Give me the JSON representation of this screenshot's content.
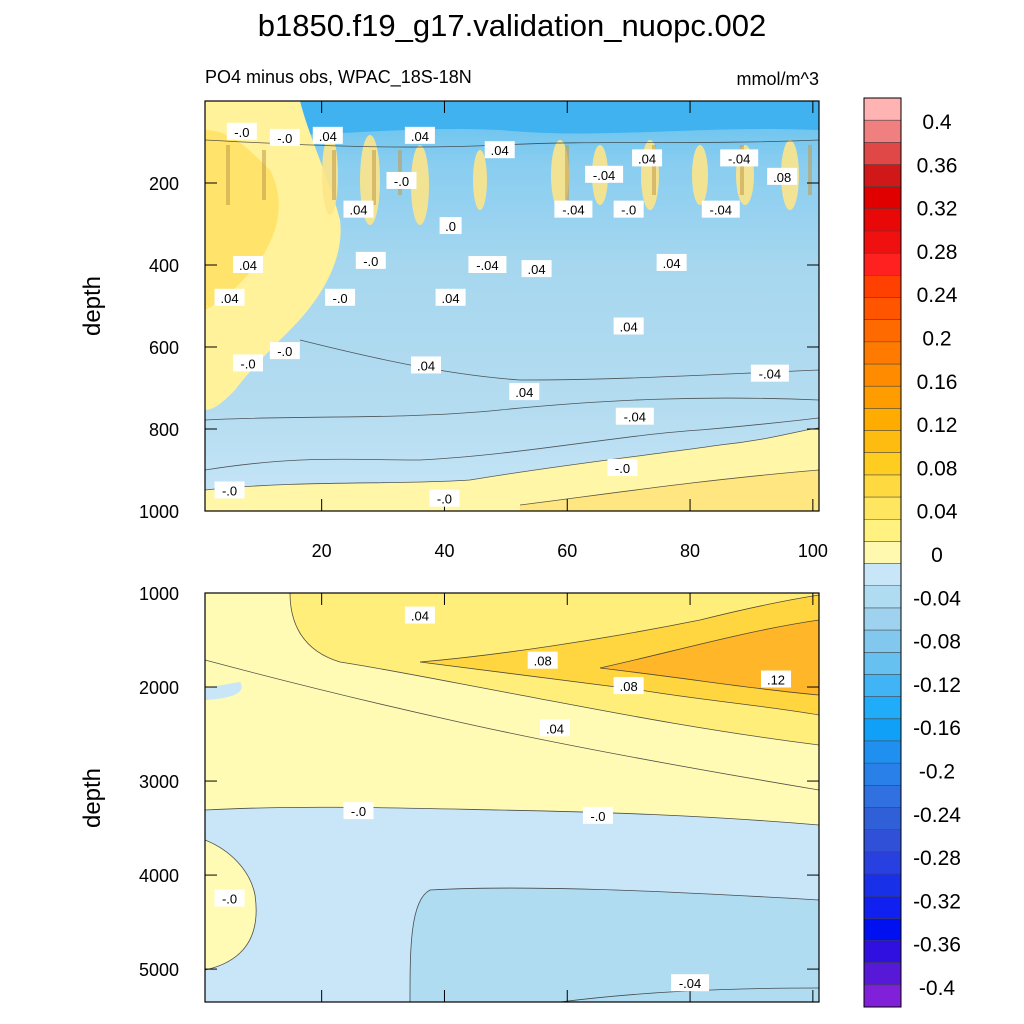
{
  "chart_data": {
    "type": "contour",
    "title": "b1850.f19_g17.validation_nuopc.002",
    "variable_label": "PO4 minus obs, WPAC_18S-18N",
    "units": "mmol/m^3",
    "colorbar": {
      "tick_labels": [
        "0.4",
        "0.36",
        "0.32",
        "0.28",
        "0.24",
        "0.2",
        "0.16",
        "0.12",
        "0.08",
        "0.04",
        "0",
        "-0.04",
        "-0.08",
        "-0.12",
        "-0.16",
        "-0.2",
        "-0.24",
        "-0.28",
        "-0.32",
        "-0.36",
        "-0.4"
      ],
      "colors": [
        "#ffb3b3",
        "#f08080",
        "#e04848",
        "#d01818",
        "#e00000",
        "#e80808",
        "#f01010",
        "#ff2020",
        "#ff4000",
        "#ff5500",
        "#ff6a00",
        "#ff7a00",
        "#ff8c00",
        "#ff9c00",
        "#ffac00",
        "#ffbc10",
        "#ffcc20",
        "#ffd940",
        "#ffe660",
        "#fff280",
        "#fff9b0",
        "#c8e6f8",
        "#b0dcf2",
        "#9ed2ee",
        "#82c8ee",
        "#66c0f0",
        "#40b4f4",
        "#20acf8",
        "#10a0f8",
        "#2090f0",
        "#2880e8",
        "#3070e0",
        "#3060d8",
        "#3050d8",
        "#2840e0",
        "#1830e8",
        "#1020f0",
        "#0010f0",
        "#3010e0",
        "#5818d8",
        "#8020d8"
      ]
    },
    "panels": [
      {
        "name": "upper",
        "x_ticks": [
          20,
          40,
          60,
          80,
          100
        ],
        "xlim": [
          1,
          101
        ],
        "y_ticks": [
          200,
          400,
          600,
          800,
          1000
        ],
        "ylim": [
          0,
          1000
        ],
        "ylabel": "depth",
        "contour_labels": [
          {
            "text": "-.0",
            "x": 7,
            "y": 75
          },
          {
            "text": "-.0",
            "x": 14,
            "y": 90
          },
          {
            "text": ".04",
            "x": 21,
            "y": 85
          },
          {
            "text": ".04",
            "x": 36,
            "y": 85
          },
          {
            "text": ".04",
            "x": 49,
            "y": 120
          },
          {
            "text": ".04",
            "x": 73,
            "y": 140
          },
          {
            "text": "-.04",
            "x": 88,
            "y": 140
          },
          {
            "text": "-.04",
            "x": 66,
            "y": 180
          },
          {
            "text": "-.0",
            "x": 33,
            "y": 195
          },
          {
            "text": ".08",
            "x": 95,
            "y": 185
          },
          {
            "text": ".04",
            "x": 26,
            "y": 265
          },
          {
            "text": "-.04",
            "x": 61,
            "y": 265
          },
          {
            "text": "-.0",
            "x": 70,
            "y": 265
          },
          {
            "text": "-.04",
            "x": 85,
            "y": 265
          },
          {
            "text": ".0",
            "x": 41,
            "y": 305
          },
          {
            "text": ".04",
            "x": 8,
            "y": 400
          },
          {
            "text": "-.0",
            "x": 28,
            "y": 390
          },
          {
            "text": "-.04",
            "x": 47,
            "y": 400
          },
          {
            "text": ".04",
            "x": 55,
            "y": 410
          },
          {
            "text": ".04",
            "x": 77,
            "y": 395
          },
          {
            "text": ".04",
            "x": 5,
            "y": 480
          },
          {
            "text": "-.0",
            "x": 23,
            "y": 480
          },
          {
            "text": ".04",
            "x": 41,
            "y": 480
          },
          {
            "text": ".04",
            "x": 70,
            "y": 550
          },
          {
            "text": "-.0",
            "x": 14,
            "y": 610
          },
          {
            "text": "-.0",
            "x": 8,
            "y": 640
          },
          {
            "text": ".04",
            "x": 37,
            "y": 645
          },
          {
            "text": "-.04",
            "x": 93,
            "y": 665
          },
          {
            "text": ".04",
            "x": 53,
            "y": 710
          },
          {
            "text": "-.04",
            "x": 71,
            "y": 770
          },
          {
            "text": "-.0",
            "x": 69,
            "y": 895
          },
          {
            "text": "-.0",
            "x": 5,
            "y": 950
          },
          {
            "text": "-.0",
            "x": 40,
            "y": 970
          }
        ]
      },
      {
        "name": "lower",
        "x_ticks": [],
        "xlim": [
          1,
          101
        ],
        "y_ticks": [
          1000,
          2000,
          3000,
          4000,
          5000
        ],
        "ylim": [
          1000,
          5350
        ],
        "ylabel": "depth",
        "contour_labels": [
          {
            "text": ".04",
            "x": 36,
            "y": 1240
          },
          {
            "text": ".08",
            "x": 56,
            "y": 1720
          },
          {
            "text": ".08",
            "x": 70,
            "y": 1990
          },
          {
            "text": ".12",
            "x": 94,
            "y": 1920
          },
          {
            "text": ".04",
            "x": 58,
            "y": 2440
          },
          {
            "text": "-.0",
            "x": 26,
            "y": 3320
          },
          {
            "text": "-.0",
            "x": 65,
            "y": 3370
          },
          {
            "text": "-.0",
            "x": 5,
            "y": 4250
          },
          {
            "text": "-.04",
            "x": 80,
            "y": 5150
          }
        ]
      }
    ]
  }
}
